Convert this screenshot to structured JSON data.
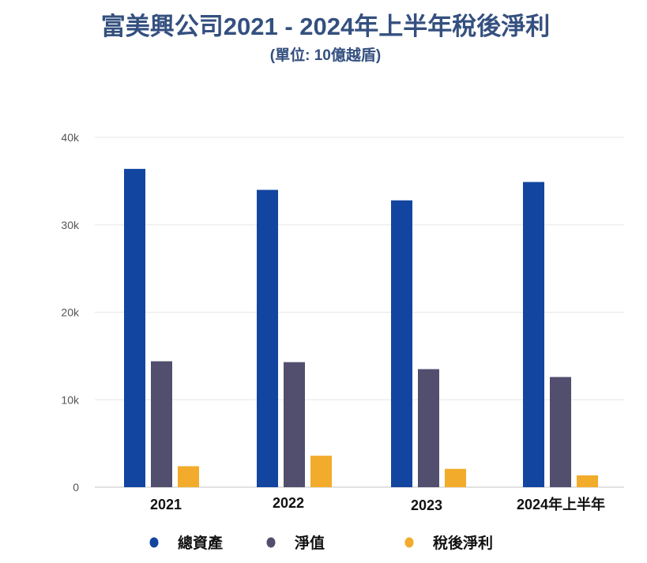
{
  "chart_data": {
    "type": "bar",
    "title": "富美興公司2021 - 2024年上半年稅後淨利",
    "subtitle": "(單位: 10億越盾)",
    "xlabel": "",
    "ylabel": "",
    "categories": [
      "2021",
      "2022",
      "2023",
      "2024年上半年"
    ],
    "series": [
      {
        "name": "總資產",
        "color": "#1245a0",
        "values": [
          36400,
          34000,
          32800,
          34900
        ]
      },
      {
        "name": "淨值",
        "color": "#524e6e",
        "values": [
          14400,
          14300,
          13500,
          12600
        ]
      },
      {
        "name": "稅後淨利",
        "color": "#f2ab2a",
        "values": [
          2400,
          3600,
          2100,
          1350
        ]
      }
    ],
    "ylim": [
      0,
      40000
    ],
    "yticks": [
      0,
      10000,
      20000,
      30000,
      40000
    ],
    "ytick_labels": [
      "0",
      "10k",
      "20k",
      "30k",
      "40k"
    ],
    "grid": true,
    "legend_position": "bottom"
  }
}
